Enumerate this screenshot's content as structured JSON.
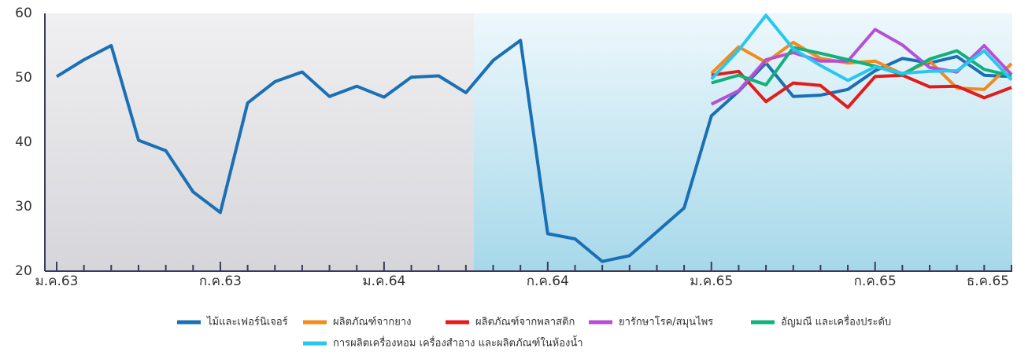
{
  "chart_data": {
    "type": "line",
    "categories": [
      "ม.ค.63",
      null,
      null,
      null,
      null,
      null,
      "ก.ค.63",
      null,
      null,
      null,
      null,
      null,
      "ม.ค.64",
      null,
      null,
      null,
      null,
      null,
      "ก.ค.64",
      null,
      null,
      null,
      null,
      null,
      "ม.ค.65",
      null,
      null,
      null,
      null,
      null,
      "ก.ค.65",
      null,
      null,
      null,
      null,
      "ธ.ค.65"
    ],
    "ylim": [
      20,
      60
    ],
    "yticks": [
      20,
      30,
      40,
      50,
      60
    ],
    "grid": false,
    "legend": "bottom",
    "series": [
      {
        "name": "ไม้และเฟอร์นิเจอร์",
        "color": "#1a6fb5",
        "values": [
          50.2,
          52.8,
          55,
          40.3,
          38.7,
          32.3,
          29.1,
          46.1,
          49.4,
          50.9,
          47.1,
          48.7,
          47.0,
          50.1,
          50.3,
          47.7,
          52.7,
          55.8,
          25.8,
          25.0,
          21.5,
          22.4,
          26.1,
          29.8,
          44.1,
          47.9,
          52.3,
          47.1,
          47.3,
          48.2,
          51.1,
          53.0,
          52.3,
          53.3,
          50.4,
          50.2
        ]
      },
      {
        "name": "ผลิตภัณฑ์จากยาง",
        "color": "#f28a1c",
        "values": [
          null,
          null,
          null,
          null,
          null,
          null,
          null,
          null,
          null,
          null,
          null,
          null,
          null,
          null,
          null,
          null,
          null,
          null,
          null,
          null,
          null,
          null,
          null,
          null,
          50.7,
          54.8,
          52.4,
          55.5,
          53.0,
          52.3,
          52.6,
          50.6,
          52.6,
          48.4,
          48.2,
          52.2
        ]
      },
      {
        "name": "ผลิตภัณฑ์จากพลาสติก",
        "color": "#e31b1b",
        "values": [
          null,
          null,
          null,
          null,
          null,
          null,
          null,
          null,
          null,
          null,
          null,
          null,
          null,
          null,
          null,
          null,
          null,
          null,
          null,
          null,
          null,
          null,
          null,
          null,
          50.4,
          51.0,
          46.3,
          49.2,
          48.8,
          45.4,
          50.2,
          50.4,
          48.6,
          48.7,
          46.9,
          48.5
        ]
      },
      {
        "name": "ยารักษาโรค/สมุนไพร",
        "color": "#b64fd6",
        "values": [
          null,
          null,
          null,
          null,
          null,
          null,
          null,
          null,
          null,
          null,
          null,
          null,
          null,
          null,
          null,
          null,
          null,
          null,
          null,
          null,
          null,
          null,
          null,
          null,
          45.9,
          48.0,
          52.8,
          53.9,
          52.6,
          52.6,
          57.5,
          55.1,
          51.6,
          50.9,
          55.0,
          50.5
        ]
      },
      {
        "name": "อัญมณี และเครื่องประดับ",
        "color": "#12b07a",
        "values": [
          null,
          null,
          null,
          null,
          null,
          null,
          null,
          null,
          null,
          null,
          null,
          null,
          null,
          null,
          null,
          null,
          null,
          null,
          null,
          null,
          null,
          null,
          null,
          null,
          49.2,
          50.4,
          48.9,
          54.7,
          53.8,
          52.8,
          51.8,
          50.5,
          52.9,
          54.2,
          51.3,
          50.3
        ]
      },
      {
        "name": "การผลิตเครื่องหอม เครื่องสำอาง และผลิตภัณฑ์ในห้องน้ำ",
        "color": "#27c7ef",
        "values": [
          null,
          null,
          null,
          null,
          null,
          null,
          null,
          null,
          null,
          null,
          null,
          null,
          null,
          null,
          null,
          null,
          null,
          null,
          null,
          null,
          null,
          null,
          null,
          null,
          49.8,
          54.3,
          59.7,
          54.5,
          51.9,
          49.6,
          51.7,
          50.7,
          51.0,
          51.1,
          54.2,
          49.7
        ]
      }
    ]
  }
}
